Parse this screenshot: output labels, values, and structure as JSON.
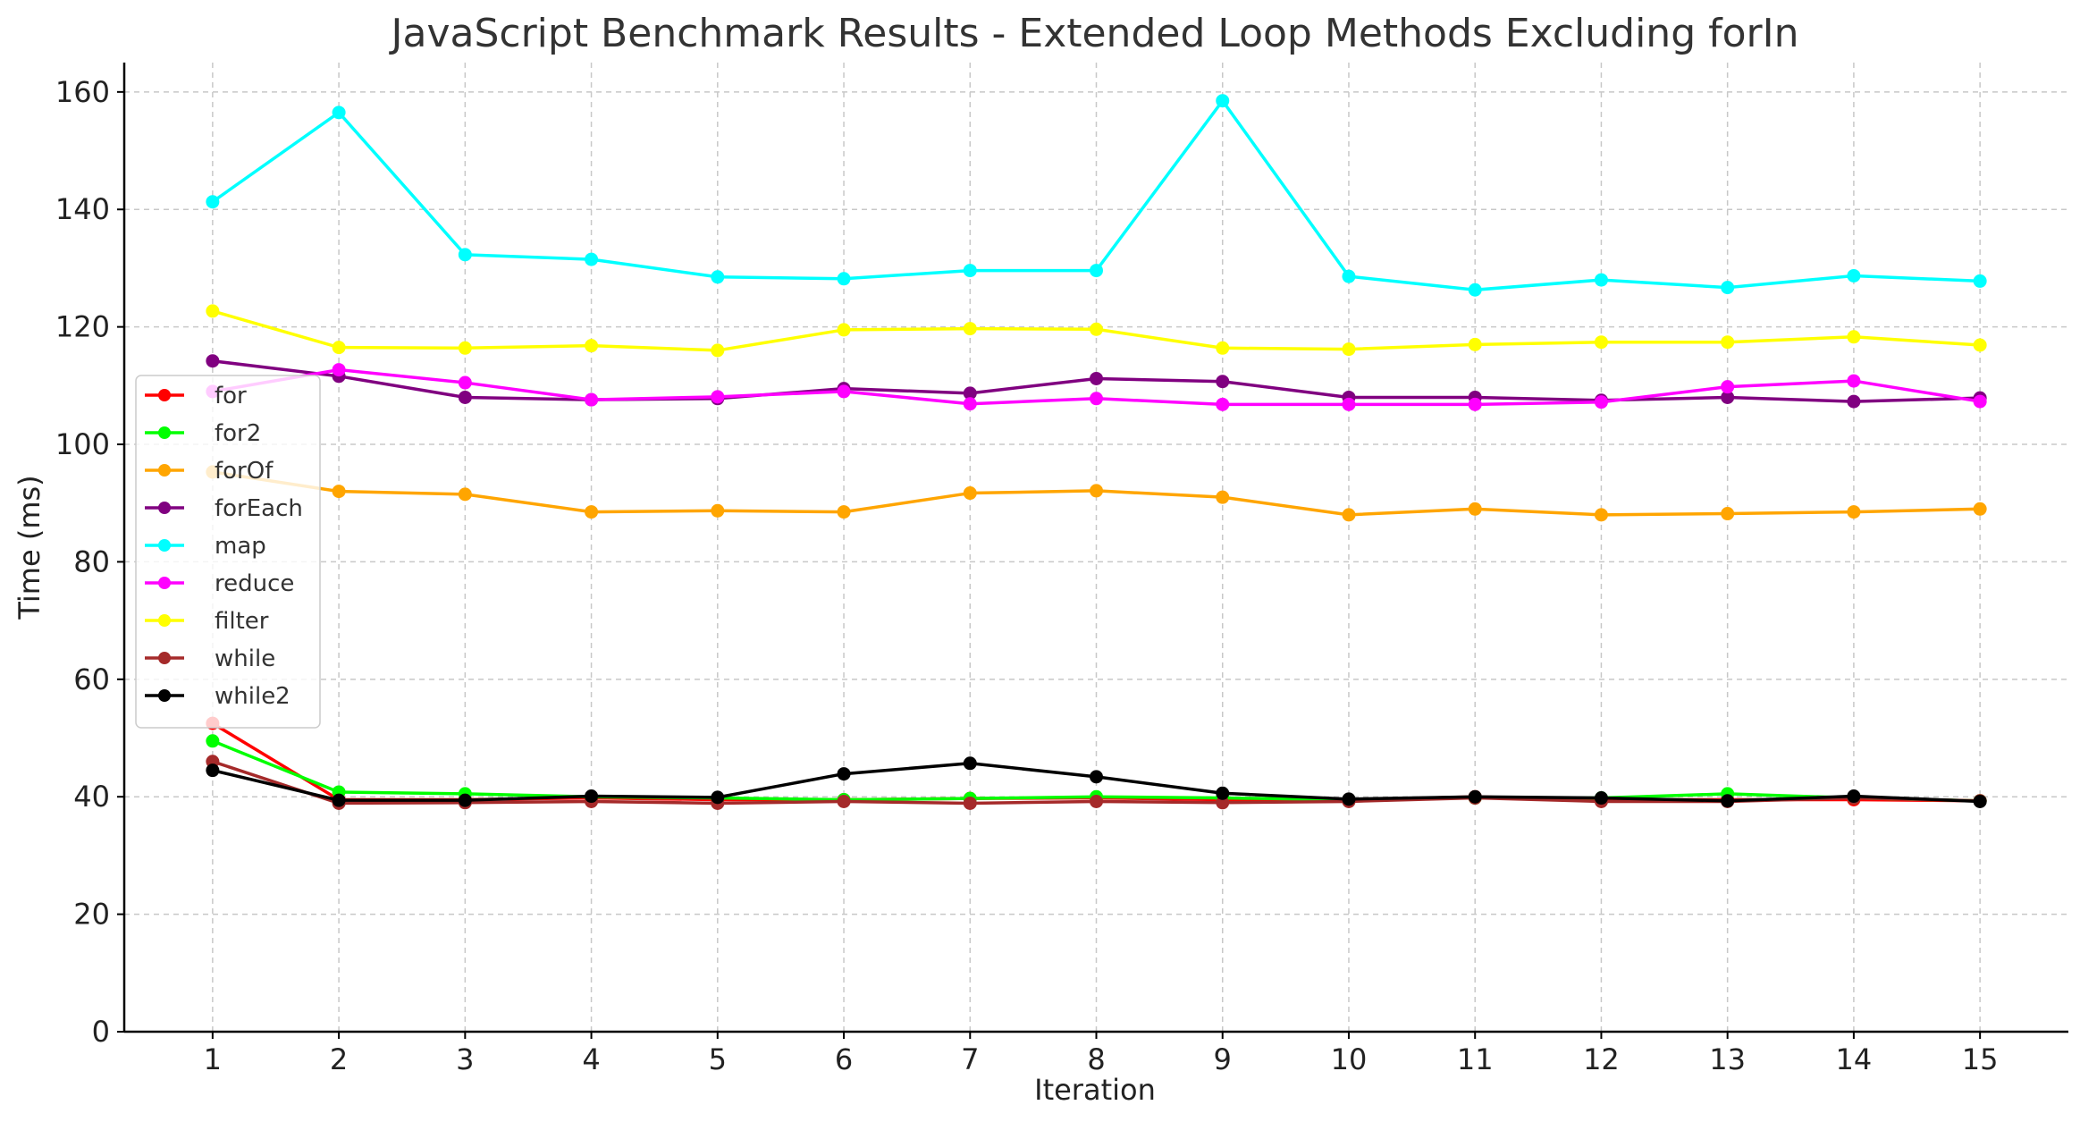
{
  "chart_data": {
    "type": "line",
    "title": "JavaScript Benchmark Results - Extended Loop Methods Excluding forIn",
    "xlabel": "Iteration",
    "ylabel": "Time (ms)",
    "x": [
      1,
      2,
      3,
      4,
      5,
      6,
      7,
      8,
      9,
      10,
      11,
      12,
      13,
      14,
      15
    ],
    "xlim": [
      0.3,
      15.7
    ],
    "ylim": [
      0,
      165
    ],
    "yticks": [
      0,
      20,
      40,
      60,
      80,
      100,
      120,
      140,
      160
    ],
    "grid": true,
    "legend_position": "center-left",
    "series": [
      {
        "name": "for",
        "color": "#ff0000",
        "values": [
          52.5,
          39.5,
          39.5,
          39.8,
          39.5,
          39.5,
          39.7,
          39.8,
          39.5,
          39.5,
          40.0,
          39.5,
          39.5,
          39.5,
          39.3
        ]
      },
      {
        "name": "for2",
        "color": "#00ff00",
        "values": [
          49.5,
          40.8,
          40.5,
          40.0,
          39.8,
          39.5,
          39.7,
          40.0,
          39.8,
          39.5,
          39.8,
          39.8,
          40.5,
          39.8,
          39.3
        ]
      },
      {
        "name": "forOf",
        "color": "#ffa500",
        "values": [
          95.3,
          92.0,
          91.5,
          88.5,
          88.7,
          88.5,
          91.7,
          92.1,
          91.0,
          88.0,
          89.0,
          88.0,
          88.2,
          88.5,
          89.0
        ]
      },
      {
        "name": "forEach",
        "color": "#800080",
        "values": [
          114.2,
          111.6,
          108.0,
          107.6,
          107.8,
          109.5,
          108.7,
          111.2,
          110.7,
          108.0,
          108.0,
          107.5,
          108.0,
          107.3,
          107.9
        ]
      },
      {
        "name": "map",
        "color": "#00ffff",
        "values": [
          141.3,
          156.5,
          132.3,
          131.5,
          128.5,
          128.2,
          129.6,
          129.6,
          158.5,
          128.6,
          126.3,
          128.0,
          126.7,
          128.7,
          127.8
        ]
      },
      {
        "name": "reduce",
        "color": "#ff00ff",
        "values": [
          109.0,
          112.7,
          110.5,
          107.6,
          108.1,
          109.0,
          106.9,
          107.8,
          106.8,
          106.8,
          106.8,
          107.2,
          109.8,
          110.8,
          107.3
        ]
      },
      {
        "name": "filter",
        "color": "#ffff00",
        "values": [
          122.7,
          116.5,
          116.4,
          116.8,
          116.0,
          119.5,
          119.7,
          119.6,
          116.4,
          116.2,
          117.0,
          117.4,
          117.4,
          118.3,
          116.9
        ]
      },
      {
        "name": "while",
        "color": "#a52a2a",
        "values": [
          46.0,
          38.9,
          39.0,
          39.2,
          38.9,
          39.2,
          38.9,
          39.2,
          39.0,
          39.2,
          39.8,
          39.2,
          39.2,
          39.8,
          39.3
        ]
      },
      {
        "name": "while2",
        "color": "#000000",
        "values": [
          44.5,
          39.4,
          39.4,
          40.1,
          39.9,
          43.9,
          45.7,
          43.4,
          40.6,
          39.6,
          40.0,
          39.8,
          39.3,
          40.1,
          39.2
        ]
      }
    ]
  }
}
